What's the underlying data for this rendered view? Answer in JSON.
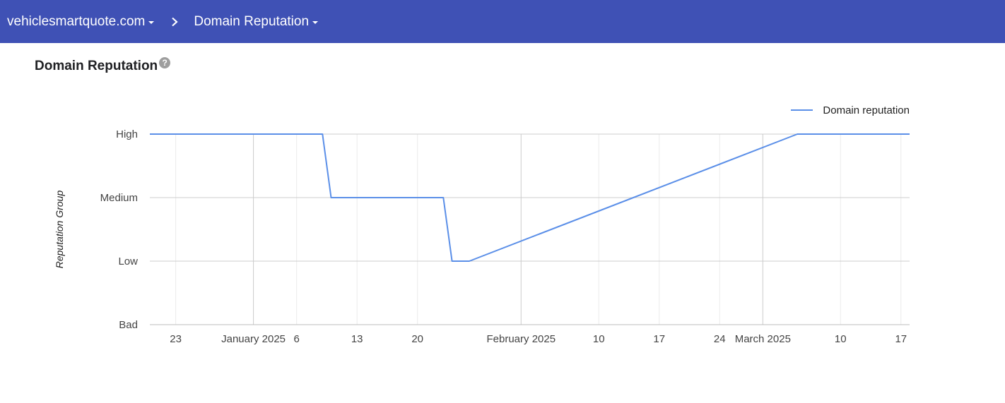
{
  "header": {
    "domain_label": "vehiclesmartquote.com",
    "separator": "›",
    "section_label": "Domain Reputation",
    "background_color": "#3f51b5"
  },
  "page": {
    "title": "Domain Reputation",
    "help_glyph": "?"
  },
  "chart_data": {
    "type": "line",
    "title": "",
    "ylabel": "Reputation Group",
    "xlabel": "",
    "y_categories": [
      "Bad",
      "Low",
      "Medium",
      "High"
    ],
    "x_ticks": [
      {
        "label": "23",
        "date": "2024-12-23",
        "major": false
      },
      {
        "label": "January 2025",
        "date": "2025-01-01",
        "major": true
      },
      {
        "label": "6",
        "date": "2025-01-06",
        "major": false
      },
      {
        "label": "13",
        "date": "2025-01-13",
        "major": false
      },
      {
        "label": "20",
        "date": "2025-01-20",
        "major": false
      },
      {
        "label": "February 2025",
        "date": "2025-02-01",
        "major": true
      },
      {
        "label": "10",
        "date": "2025-02-10",
        "major": false
      },
      {
        "label": "17",
        "date": "2025-02-17",
        "major": false
      },
      {
        "label": "24",
        "date": "2025-02-24",
        "major": false
      },
      {
        "label": "March 2025",
        "date": "2025-03-01",
        "major": true
      },
      {
        "label": "10",
        "date": "2025-03-10",
        "major": false
      },
      {
        "label": "17",
        "date": "2025-03-17",
        "major": false
      }
    ],
    "x_range": [
      "2024-12-20",
      "2025-03-18"
    ],
    "series": [
      {
        "name": "Domain reputation",
        "color": "#5b8fe8",
        "points": [
          {
            "x": "2024-12-20",
            "y": "High"
          },
          {
            "x": "2025-01-09",
            "y": "High"
          },
          {
            "x": "2025-01-10",
            "y": "Medium"
          },
          {
            "x": "2025-01-23",
            "y": "Medium"
          },
          {
            "x": "2025-01-24",
            "y": "Low"
          },
          {
            "x": "2025-01-26",
            "y": "Low"
          },
          {
            "x": "2025-03-05",
            "y": "High"
          },
          {
            "x": "2025-03-18",
            "y": "High"
          }
        ]
      }
    ],
    "legend_position": "top-right",
    "grid": true
  }
}
